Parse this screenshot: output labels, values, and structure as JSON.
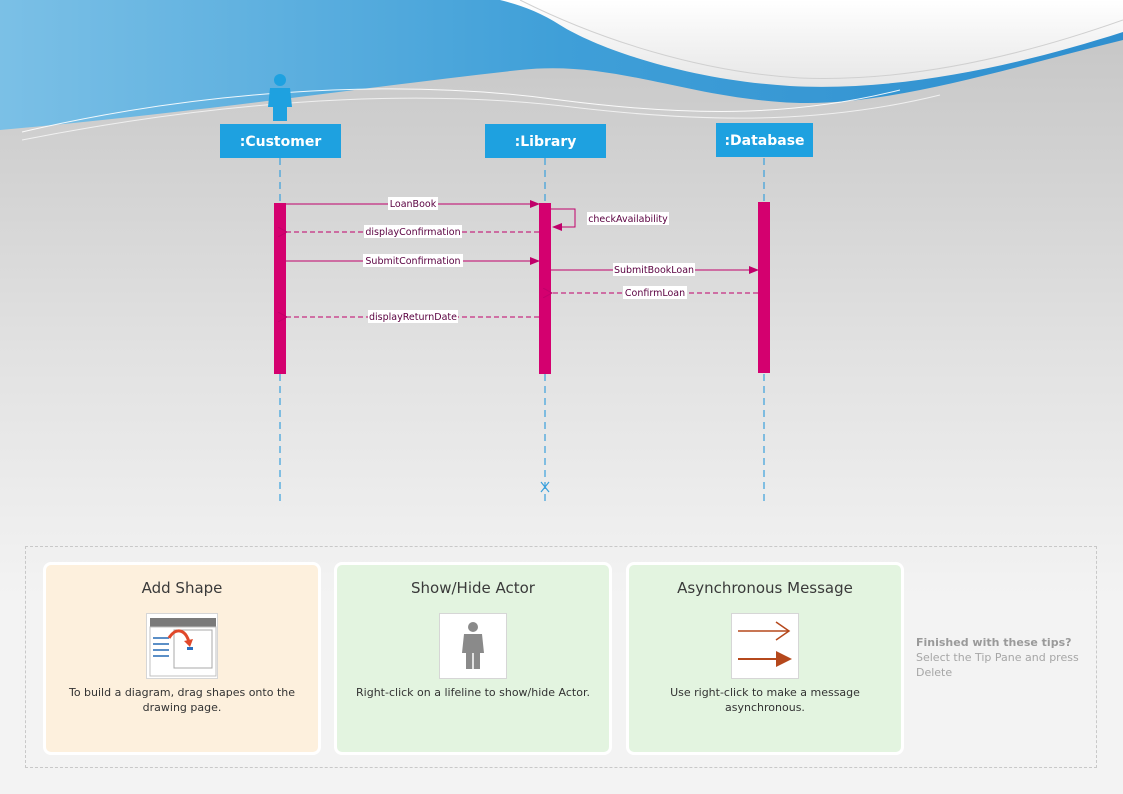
{
  "diagram": {
    "lifelines": [
      {
        "name": ":Customer",
        "has_actor": true
      },
      {
        "name": ":Library",
        "has_actor": false
      },
      {
        "name": ":Database",
        "has_actor": false
      }
    ],
    "messages": [
      {
        "label": "LoanBook",
        "from": ":Customer",
        "to": ":Library",
        "kind": "synchronous"
      },
      {
        "label": "checkAvailability",
        "from": ":Library",
        "to": ":Library",
        "kind": "self"
      },
      {
        "label": "displayConfirmation",
        "from": ":Library",
        "to": ":Customer",
        "kind": "return"
      },
      {
        "label": "SubmitConfirmation",
        "from": ":Customer",
        "to": ":Library",
        "kind": "synchronous"
      },
      {
        "label": "SubmitBookLoan",
        "from": ":Library",
        "to": ":Database",
        "kind": "synchronous"
      },
      {
        "label": "ConfirmLoan",
        "from": ":Database",
        "to": ":Library",
        "kind": "return"
      },
      {
        "label": "displayReturnDate",
        "from": ":Library",
        "to": ":Customer",
        "kind": "return"
      }
    ],
    "colors": {
      "lifeline_head": "#1ea1e0",
      "activation": "#d4006f",
      "message": "#c0006a",
      "lifeline_dash": "#3aa0dc"
    }
  },
  "tips": [
    {
      "title": "Add Shape",
      "text": "To build a diagram, drag shapes onto the drawing page.",
      "icon": "add-shape-thumbnail-icon"
    },
    {
      "title": "Show/Hide Actor",
      "text": "Right-click on a lifeline to show/hide Actor.",
      "icon": "actor-figure-icon"
    },
    {
      "title": "Asynchronous Message",
      "text": "Use right-click to make a message asynchronous.",
      "icon": "async-arrows-icon"
    }
  ],
  "finished": {
    "heading": "Finished with these tips?",
    "text": "Select the Tip Pane and press Delete"
  }
}
